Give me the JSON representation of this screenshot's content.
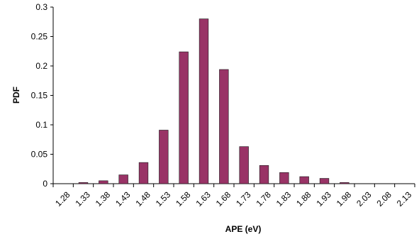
{
  "chart_data": {
    "type": "bar",
    "title": "",
    "xlabel": "APE (eV)",
    "ylabel": "PDF",
    "categories": [
      "1.28",
      "1.33",
      "1.38",
      "1.43",
      "1.48",
      "1.53",
      "1.58",
      "1.63",
      "1.68",
      "1.73",
      "1.78",
      "1.83",
      "1.88",
      "1.93",
      "1.98",
      "2.03",
      "2.08",
      "2.13"
    ],
    "values": [
      0,
      0.002,
      0.005,
      0.015,
      0.036,
      0.091,
      0.224,
      0.28,
      0.194,
      0.063,
      0.031,
      0.019,
      0.012,
      0.009,
      0.002,
      0,
      0,
      0
    ],
    "ylim": [
      0,
      0.3
    ],
    "yticks": [
      "0",
      "0.05",
      "0.1",
      "0.15",
      "0.2",
      "0.25",
      "0.3"
    ],
    "grid": false,
    "legend": "none",
    "bar_color": "#993366",
    "bar_stroke": "#1a1a1a"
  }
}
